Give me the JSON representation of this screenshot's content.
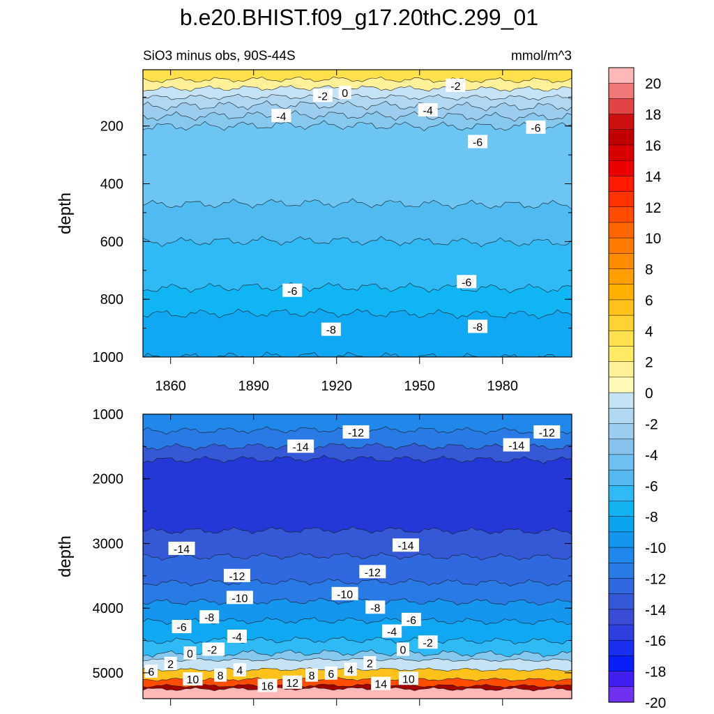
{
  "title": "b.e20.BHIST.f09_g17.20thC.299_01",
  "subtitle_left": "SiO3 minus obs, 90S-44S",
  "subtitle_right": "mmol/m^3",
  "chart_data": [
    {
      "type": "heatmap",
      "panel": "upper",
      "ylabel": "depth",
      "xticks": [
        "1860",
        "1890",
        "1920",
        "1950",
        "1980"
      ],
      "xtick_values": [
        1860,
        1890,
        1920,
        1950,
        1980
      ],
      "yticks": [
        "200",
        "400",
        "600",
        "800",
        "1000"
      ],
      "ytick_values": [
        200,
        400,
        600,
        800,
        1000
      ],
      "xlim": [
        1850,
        2005
      ],
      "ylim": [
        1000,
        5
      ],
      "contour_bands": [
        {
          "depth": 5,
          "value": 2
        },
        {
          "depth": 40,
          "value": 1
        },
        {
          "depth": 70,
          "value": -1
        },
        {
          "depth": 100,
          "value": -2
        },
        {
          "depth": 130,
          "value": -3
        },
        {
          "depth": 165,
          "value": -4
        },
        {
          "depth": 200,
          "value": -5
        },
        {
          "depth": 470,
          "value": -5.5
        },
        {
          "depth": 600,
          "value": -6
        },
        {
          "depth": 760,
          "value": -7
        },
        {
          "depth": 850,
          "value": -8
        },
        {
          "depth": 1000,
          "value": -9
        }
      ],
      "contour_labels": [
        {
          "text": "-2",
          "year": 1915,
          "depth": 95
        },
        {
          "text": "0",
          "year": 1923,
          "depth": 85
        },
        {
          "text": "-4",
          "year": 1900,
          "depth": 165
        },
        {
          "text": "-4",
          "year": 1953,
          "depth": 145
        },
        {
          "text": "-2",
          "year": 1963,
          "depth": 60
        },
        {
          "text": "-6",
          "year": 1992,
          "depth": 205
        },
        {
          "text": "-6",
          "year": 1971,
          "depth": 255
        },
        {
          "text": "-6",
          "year": 1904,
          "depth": 770
        },
        {
          "text": "-6",
          "year": 1967,
          "depth": 740
        },
        {
          "text": "-8",
          "year": 1918,
          "depth": 905
        },
        {
          "text": "-8",
          "year": 1971,
          "depth": 895
        }
      ]
    },
    {
      "type": "heatmap",
      "panel": "lower",
      "ylabel": "depth",
      "yticks": [
        "1000",
        "2000",
        "3000",
        "4000",
        "5000"
      ],
      "ytick_values": [
        1000,
        2000,
        3000,
        4000,
        5000
      ],
      "xlim": [
        1850,
        2005
      ],
      "ylim": [
        5400,
        1000
      ],
      "contour_bands": [
        {
          "depth": 1000,
          "value": -11
        },
        {
          "depth": 1250,
          "value": -12
        },
        {
          "depth": 1500,
          "value": -14
        },
        {
          "depth": 1700,
          "value": -15
        },
        {
          "depth": 2800,
          "value": -14
        },
        {
          "depth": 3200,
          "value": -13
        },
        {
          "depth": 3600,
          "value": -12
        },
        {
          "depth": 3900,
          "value": -10
        },
        {
          "depth": 4200,
          "value": -8
        },
        {
          "depth": 4500,
          "value": -6
        },
        {
          "depth": 4700,
          "value": -4
        },
        {
          "depth": 4800,
          "value": -1
        },
        {
          "depth": 4950,
          "value": 4
        },
        {
          "depth": 5100,
          "value": 10
        },
        {
          "depth": 5200,
          "value": 16
        },
        {
          "depth": 5250,
          "value": 21
        }
      ],
      "contour_labels": [
        {
          "text": "-12",
          "year": 1927,
          "depth": 1280
        },
        {
          "text": "-12",
          "year": 1996,
          "depth": 1280
        },
        {
          "text": "-14",
          "year": 1907,
          "depth": 1500
        },
        {
          "text": "-14",
          "year": 1985,
          "depth": 1480
        },
        {
          "text": "-14",
          "year": 1864,
          "depth": 3080
        },
        {
          "text": "-14",
          "year": 1945,
          "depth": 3030
        },
        {
          "text": "-12",
          "year": 1884,
          "depth": 3500
        },
        {
          "text": "-12",
          "year": 1933,
          "depth": 3440
        },
        {
          "text": "-10",
          "year": 1885,
          "depth": 3840
        },
        {
          "text": "-10",
          "year": 1923,
          "depth": 3780
        },
        {
          "text": "-8",
          "year": 1874,
          "depth": 4140
        },
        {
          "text": "-8",
          "year": 1934,
          "depth": 3990
        },
        {
          "text": "-6",
          "year": 1864,
          "depth": 4290
        },
        {
          "text": "-6",
          "year": 1947,
          "depth": 4180
        },
        {
          "text": "-4",
          "year": 1884,
          "depth": 4440
        },
        {
          "text": "-4",
          "year": 1940,
          "depth": 4360
        },
        {
          "text": "-2",
          "year": 1876,
          "depth": 4640
        },
        {
          "text": "-2",
          "year": 1953,
          "depth": 4530
        },
        {
          "text": "-2",
          "year": 1875,
          "depth": 4640
        },
        {
          "text": "0",
          "year": 1867,
          "depth": 4700
        },
        {
          "text": "0",
          "year": 1944,
          "depth": 4640
        },
        {
          "text": "2",
          "year": 1860,
          "depth": 4860
        },
        {
          "text": "2",
          "year": 1932,
          "depth": 4850
        },
        {
          "text": "4",
          "year": 1885,
          "depth": 4960
        },
        {
          "text": "4",
          "year": 1925,
          "depth": 4950
        },
        {
          "text": "6",
          "year": 1853,
          "depth": 4980
        },
        {
          "text": "6",
          "year": 1918,
          "depth": 5010
        },
        {
          "text": "8",
          "year": 1878,
          "depth": 5040
        },
        {
          "text": "8",
          "year": 1911,
          "depth": 5040
        },
        {
          "text": "10",
          "year": 1868,
          "depth": 5100
        },
        {
          "text": "10",
          "year": 1946,
          "depth": 5090
        },
        {
          "text": "12",
          "year": 1904,
          "depth": 5150
        },
        {
          "text": "14",
          "year": 1936,
          "depth": 5170
        },
        {
          "text": "16",
          "year": 1895,
          "depth": 5200
        }
      ]
    }
  ],
  "colorbar": {
    "labels": [
      "20",
      "18",
      "16",
      "14",
      "12",
      "10",
      "8",
      "6",
      "4",
      "2",
      "0",
      "-2",
      "-4",
      "-6",
      "-8",
      "-10",
      "-12",
      "-14",
      "-16",
      "-18",
      "-20"
    ],
    "colors": [
      "#ffb8b8",
      "#f07878",
      "#e04444",
      "#cc1010",
      "#c00000",
      "#d80000",
      "#ee0000",
      "#ff1a00",
      "#ff3300",
      "#ff4d00",
      "#ff6600",
      "#ff7a00",
      "#ff8c00",
      "#ffa000",
      "#ffb000",
      "#ffc21a",
      "#ffd233",
      "#ffe14d",
      "#ffea66",
      "#fff19a",
      "#fffab8",
      "#c6e3f5",
      "#b0d8f2",
      "#9ccdef",
      "#86c2ec",
      "#6ec0f2",
      "#55b8f0",
      "#2fbaf5",
      "#10b2f0",
      "#0ba4f0",
      "#1596ee",
      "#2088ea",
      "#2a7ae6",
      "#3068e0",
      "#3558d8",
      "#3a4cd6",
      "#2e3fe0",
      "#1a2ef0",
      "#0a1ef8",
      "#4020f0",
      "#7030f0"
    ]
  }
}
